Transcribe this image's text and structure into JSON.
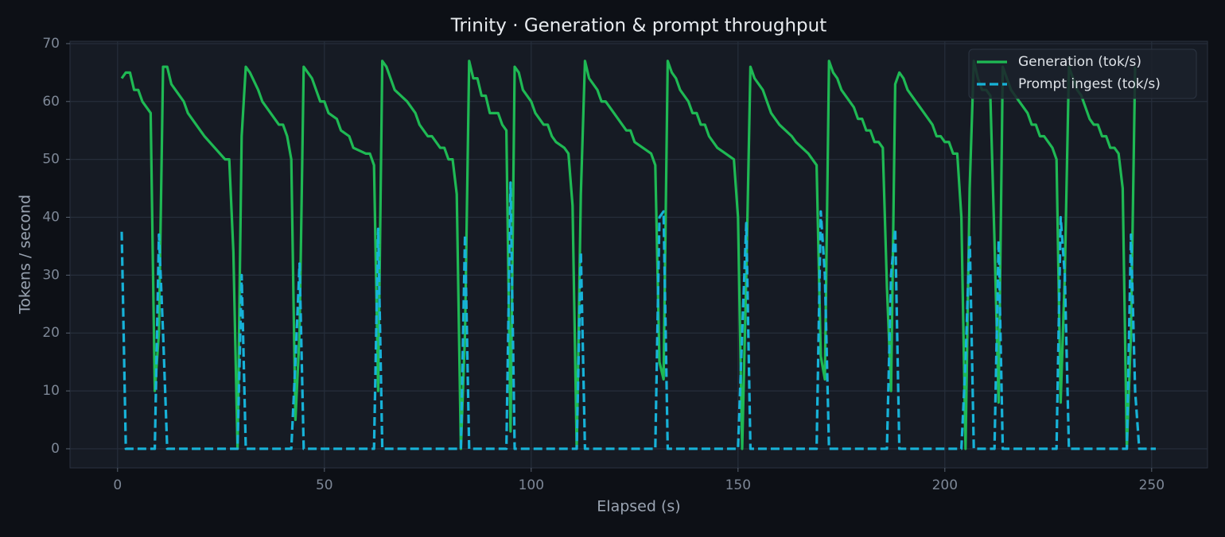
{
  "chart_data": {
    "type": "line",
    "title": "Trinity · Generation & prompt throughput",
    "x_label": "Elapsed (s)",
    "y_label": "Tokens / second",
    "xlim": [
      -11.5,
      263.5
    ],
    "xticks": [
      0,
      50,
      100,
      150,
      200,
      250
    ],
    "ylim": [
      -3.3,
      70.4
    ],
    "yticks": [
      0,
      10,
      20,
      30,
      40,
      50,
      60,
      70
    ],
    "grid": true,
    "legend": "upper right",
    "x": [
      1,
      2,
      3,
      4,
      5,
      6,
      8,
      9,
      10,
      11,
      12,
      13,
      16,
      17,
      19,
      21,
      26,
      27,
      28,
      29,
      30,
      31,
      32,
      34,
      35,
      39,
      40,
      41,
      42,
      43,
      44,
      45,
      47,
      49,
      50,
      51,
      53,
      54,
      56,
      57,
      60,
      61,
      62,
      63,
      64,
      65,
      67,
      70,
      72,
      73,
      75,
      76,
      78,
      79,
      80,
      81,
      82,
      83,
      84,
      85,
      86,
      87,
      88,
      89,
      90,
      92,
      93,
      94,
      95,
      96,
      97,
      98,
      100,
      101,
      103,
      104,
      105,
      106,
      108,
      109,
      110,
      111,
      112,
      113,
      114,
      116,
      117,
      118,
      120,
      122,
      123,
      124,
      125,
      127,
      129,
      130,
      131,
      132,
      133,
      134,
      135,
      136,
      138,
      139,
      140,
      141,
      142,
      143,
      145,
      147,
      149,
      150,
      151,
      152,
      153,
      154,
      156,
      157,
      158,
      160,
      163,
      164,
      167,
      169,
      170,
      171,
      172,
      173,
      174,
      175,
      178,
      179,
      180,
      181,
      182,
      183,
      184,
      185,
      186,
      187,
      188,
      189,
      190,
      191,
      193,
      195,
      197,
      198,
      199,
      200,
      201,
      202,
      203,
      204,
      205,
      206,
      207,
      208,
      209,
      210,
      211,
      212,
      213,
      214,
      216,
      218,
      220,
      221,
      222,
      223,
      224,
      226,
      227,
      228,
      229,
      230,
      231,
      232,
      233,
      234,
      235,
      236,
      237,
      238,
      239,
      240,
      241,
      242,
      243,
      244,
      245,
      246,
      247,
      248,
      251
    ],
    "series": [
      {
        "name": "Generation (tok/s)",
        "color": "#1fb954",
        "dash": false,
        "values": [
          64,
          65,
          65,
          62,
          62,
          60,
          58,
          10,
          20,
          66,
          66,
          63,
          60,
          58,
          56,
          54,
          50,
          50,
          34,
          0,
          54,
          66,
          65,
          62,
          60,
          56,
          56,
          54,
          50,
          5,
          20,
          66,
          64,
          60,
          60,
          58,
          57,
          55,
          54,
          52,
          51,
          51,
          49,
          10,
          67,
          66,
          62,
          60,
          58,
          56,
          54,
          54,
          52,
          52,
          50,
          50,
          44,
          0,
          20,
          67,
          64,
          64,
          61,
          61,
          58,
          58,
          56,
          55,
          3,
          66,
          65,
          62,
          60,
          58,
          56,
          56,
          54,
          53,
          52,
          51,
          42,
          0,
          44,
          67,
          64,
          62,
          60,
          60,
          58,
          56,
          55,
          55,
          53,
          52,
          51,
          49,
          15,
          12,
          67,
          65,
          64,
          62,
          60,
          58,
          58,
          56,
          56,
          54,
          52,
          51,
          50,
          40,
          0,
          30,
          66,
          64,
          62,
          60,
          58,
          56,
          54,
          53,
          51,
          49,
          16,
          12,
          67,
          65,
          64,
          62,
          59,
          57,
          57,
          55,
          55,
          53,
          53,
          52,
          28,
          10,
          63,
          65,
          64,
          62,
          60,
          58,
          56,
          54,
          54,
          53,
          53,
          51,
          51,
          40,
          0,
          45,
          67,
          64,
          62,
          62,
          61,
          36,
          8,
          66,
          62,
          60,
          58,
          56,
          56,
          54,
          54,
          52,
          50,
          8,
          30,
          66,
          64,
          62,
          61,
          59,
          57,
          56,
          56,
          54,
          54,
          52,
          52,
          51,
          45,
          0,
          20,
          66,
          null,
          null,
          null
        ]
      },
      {
        "name": "Prompt ingest (tok/s)",
        "color": "#17b2d8",
        "dash": true,
        "values": [
          37.5,
          0,
          0,
          0,
          0,
          0,
          0,
          0,
          37,
          20,
          0,
          0,
          0,
          0,
          0,
          0,
          0,
          0,
          0,
          0,
          30,
          0,
          0,
          0,
          0,
          0,
          0,
          0,
          0,
          15,
          32,
          0,
          0,
          0,
          0,
          0,
          0,
          0,
          0,
          0,
          0,
          0,
          0,
          38,
          0,
          0,
          0,
          0,
          0,
          0,
          0,
          0,
          0,
          0,
          0,
          0,
          0,
          0,
          37,
          0,
          0,
          0,
          0,
          0,
          0,
          0,
          0,
          0,
          46,
          0,
          0,
          0,
          0,
          0,
          0,
          0,
          0,
          0,
          0,
          0,
          0,
          0,
          34,
          0,
          0,
          0,
          0,
          0,
          0,
          0,
          0,
          0,
          0,
          0,
          0,
          0,
          40,
          41,
          0,
          0,
          0,
          0,
          0,
          0,
          0,
          0,
          0,
          0,
          0,
          0,
          0,
          0,
          20,
          39,
          0,
          0,
          0,
          0,
          0,
          0,
          0,
          0,
          0,
          0,
          41,
          30,
          0,
          0,
          0,
          0,
          0,
          0,
          0,
          0,
          0,
          0,
          0,
          0,
          0,
          30,
          38,
          0,
          0,
          0,
          0,
          0,
          0,
          0,
          0,
          0,
          0,
          0,
          0,
          0,
          15,
          37,
          0,
          0,
          0,
          0,
          0,
          0,
          36,
          0,
          0,
          0,
          0,
          0,
          0,
          0,
          0,
          0,
          0,
          40,
          30,
          0,
          0,
          0,
          0,
          0,
          0,
          0,
          0,
          0,
          0,
          0,
          0,
          0,
          0,
          0,
          37,
          10,
          0,
          0,
          0
        ]
      }
    ]
  }
}
